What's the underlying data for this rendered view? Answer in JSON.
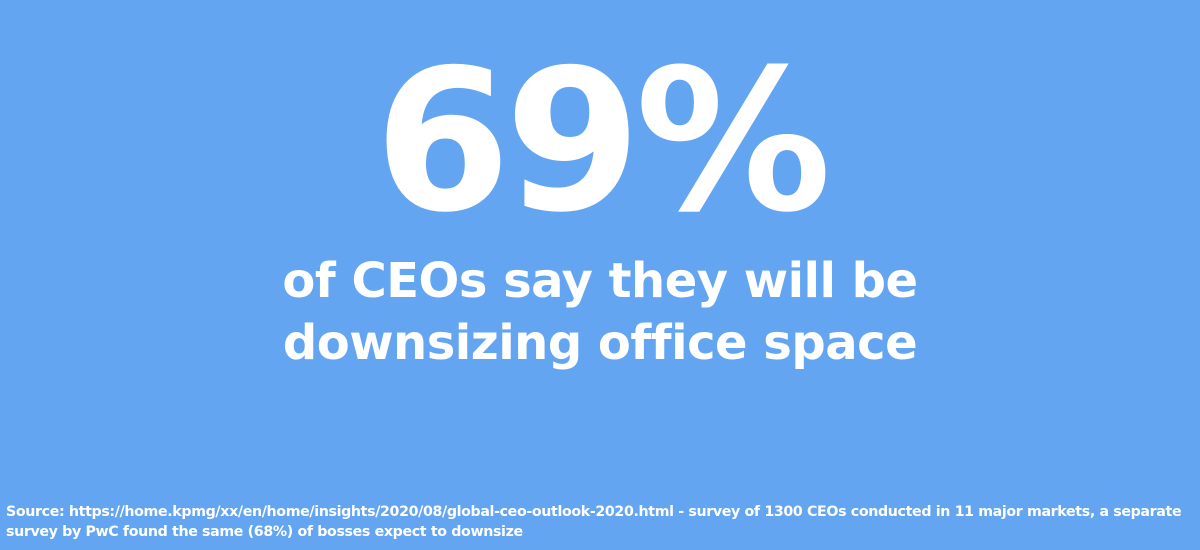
{
  "stat": {
    "value": "69%",
    "headline_line1": "of CEOs say they will be",
    "headline_line2": "downsizing office space"
  },
  "source": {
    "line1": "Source: https://home.kpmg/xx/en/home/insights/2020/08/global-ceo-outlook-2020.html - survey of 1300 CEOs conducted in 11 major markets, a separate",
    "line2": "survey by PwC found the same (68%) of bosses expect to downsize"
  },
  "colors": {
    "background": "#64a5f2",
    "text": "#ffffff"
  }
}
